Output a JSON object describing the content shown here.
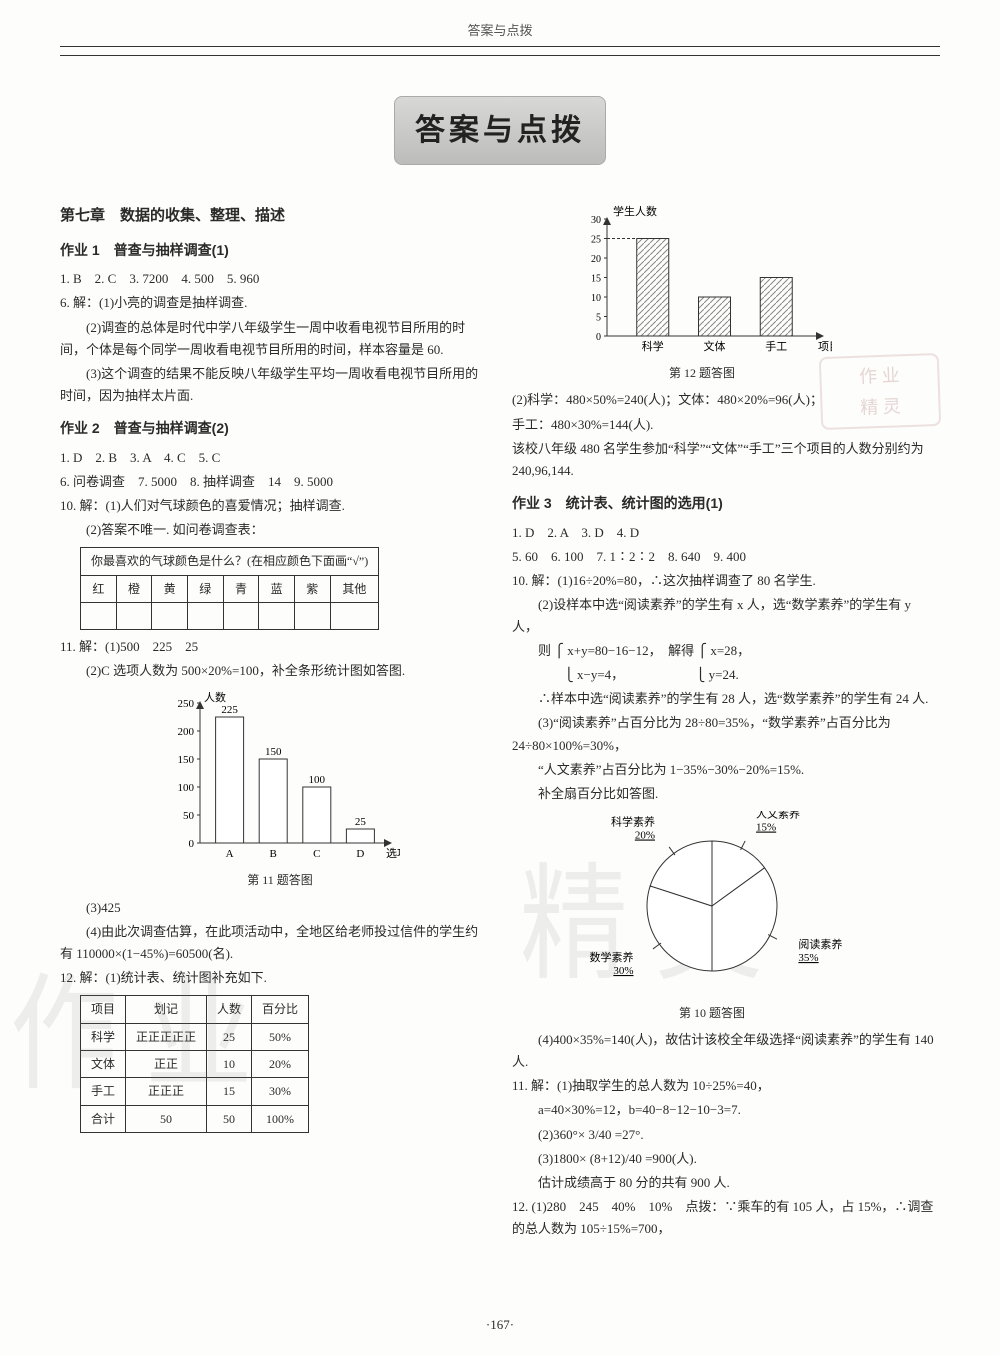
{
  "header": "答案与点拨",
  "title": "答案与点拨",
  "stamp_lines": [
    "作 业",
    "精 灵"
  ],
  "watermark_left": "作 业",
  "watermark_right": "精 灵",
  "page_number": "·167·",
  "left": {
    "chapter": "第七章　数据的收集、整理、描述",
    "sec1": {
      "title": "作业 1　普查与抽样调查(1)",
      "answers": "1. B　2. C　3. 7200　4. 500　5. 960",
      "q6_intro": "6. 解：(1)小亮的调查是抽样调查.",
      "q6_2": "(2)调查的总体是时代中学八年级学生一周中收看电视节目所用的时间，个体是每个同学一周收看电视节目所用的时间，样本容量是 60.",
      "q6_3": "(3)这个调查的结果不能反映八年级学生平均一周收看电视节目所用的时间，因为抽样太片面."
    },
    "sec2": {
      "title": "作业 2　普查与抽样调查(2)",
      "answers1": "1. D　2. B　3. A　4. C　5. C",
      "answers2": "6. 问卷调查　7. 5000　8. 抽样调查　14　9. 5000",
      "q10_1": "10. 解：(1)人们对气球颜色的喜爱情况；抽样调查.",
      "q10_2": "(2)答案不唯一. 如问卷调查表：",
      "color_table": {
        "caption": "你最喜欢的气球颜色是什么？(在相应颜色下面画“√”)",
        "cols": [
          "红",
          "橙",
          "黄",
          "绿",
          "青",
          "蓝",
          "紫",
          "其他"
        ]
      },
      "q11_1": "11. 解：(1)500　225　25",
      "q11_2": "(2)C 选项人数为 500×20%=100，补全条形统计图如答图.",
      "chart1": {
        "type": "bar",
        "ylabel": "人数",
        "xlabel": "选项",
        "categories": [
          "A",
          "B",
          "C",
          "D"
        ],
        "values": [
          225,
          150,
          100,
          25
        ],
        "value_labels": [
          "225",
          "150",
          "100",
          "25"
        ],
        "ylim": [
          0,
          250
        ],
        "ytick_step": 50,
        "bar_color": "#ffffff",
        "bar_border": "#333333",
        "axis_color": "#333333",
        "bg": "#fdfdfb",
        "caption": "第 11 题答图"
      },
      "q11_3": "(3)425",
      "q11_4": "(4)由此次调查估算，在此项活动中，全地区给老师投过信件的学生约有 110000×(1−45%)=60500(名).",
      "q12_intro": "12. 解：(1)统计表、统计图补充如下.",
      "stat_table": {
        "columns": [
          "项目",
          "划记",
          "人数",
          "百分比"
        ],
        "rows": [
          [
            "科学",
            "正正正正正",
            "25",
            "50%"
          ],
          [
            "文体",
            "正正",
            "10",
            "20%"
          ],
          [
            "手工",
            "正正正",
            "15",
            "30%"
          ],
          [
            "合计",
            "50",
            "50",
            "100%"
          ]
        ]
      }
    }
  },
  "right": {
    "chart12": {
      "type": "bar",
      "ylabel": "学生人数",
      "xlabel": "项目",
      "categories": [
        "科学",
        "文体",
        "手工"
      ],
      "values": [
        25,
        10,
        15
      ],
      "ylim": [
        0,
        30
      ],
      "yticks": [
        0,
        5,
        10,
        15,
        20,
        25,
        30
      ],
      "bar_color": "#b9b9b1",
      "pattern": true,
      "axis_color": "#333333",
      "caption": "第 12 题答图"
    },
    "q12_2a": "(2)科学：480×50%=240(人)；文体：480×20%=96(人)；",
    "q12_2b": "手工：480×30%=144(人).",
    "q12_2c": "该校八年级 480 名学生参加“科学”“文体”“手工”三个项目的人数分别约为 240,96,144.",
    "sec3": {
      "title": "作业 3　统计表、统计图的选用(1)",
      "answers1": "1. D　2. A　3. D　4. D",
      "answers2": "5. 60　6. 100　7. 1∶2∶2　8. 640　9. 400",
      "q10_1": "10. 解：(1)16÷20%=80，∴这次抽样调查了 80 名学生.",
      "q10_2a": "(2)设样本中选“阅读素养”的学生有 x 人，选“数学素养”的学生有 y 人，",
      "q10_2b": "则 ⎧ x+y=80−16−12，　解得 ⎧ x=28，",
      "q10_2c": "　　⎩ x−y=4，　　　　　　⎩ y=24.",
      "q10_2d": "∴样本中选“阅读素养”的学生有 28 人，选“数学素养”的学生有 24 人.",
      "q10_3a": "(3)“阅读素养”占百分比为 28÷80=35%，“数学素养”占百分比为 24÷80×100%=30%，",
      "q10_3b": "“人文素养”占百分比为 1−35%−30%−20%=15%.",
      "q10_3c": "补全扇百分比如答图.",
      "pie": {
        "type": "pie",
        "slices": [
          {
            "label": "人文素养",
            "pct": "15%",
            "value": 15,
            "color": "#ffffff"
          },
          {
            "label": "阅读素养",
            "pct": "35%",
            "value": 35,
            "color": "#ffffff"
          },
          {
            "label": "数学素养",
            "pct": "30%",
            "value": 30,
            "color": "#ffffff"
          },
          {
            "label": "科学素养",
            "pct": "20%",
            "value": 20,
            "color": "#ffffff"
          }
        ],
        "border": "#333333",
        "caption": "第 10 题答图"
      },
      "q10_4": "(4)400×35%=140(人)，故估计该校全年级选择“阅读素养”的学生有 140 人.",
      "q11_1": "11. 解：(1)抽取学生的总人数为 10÷25%=40，",
      "q11_1b": "a=40×30%=12，b=40−8−12−10−3=7.",
      "q11_2": "(2)360°× 3/40 =27°.",
      "q11_3": "(3)1800× (8+12)/40 =900(人).",
      "q11_3b": "估计成绩高于 80 分的共有 900 人.",
      "q12": "12. (1)280　245　40%　10%　点拨：∵乘车的有 105 人，占 15%，∴调查的总人数为 105÷15%=700，"
    }
  }
}
